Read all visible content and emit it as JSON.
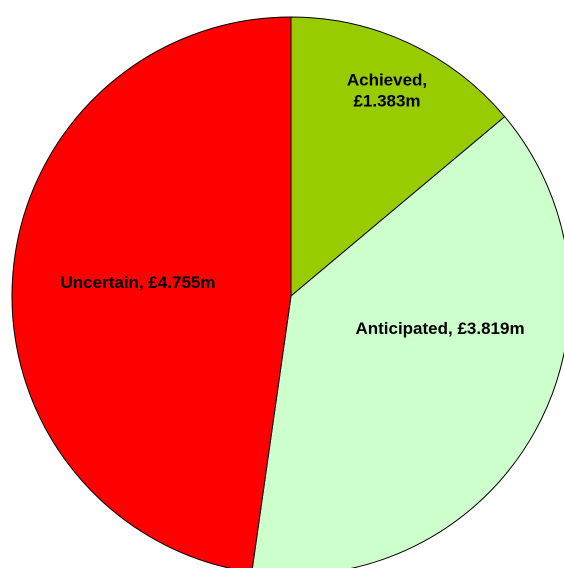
{
  "chart_data": {
    "type": "pie",
    "slices": [
      {
        "label_lines": [
          "Achieved,",
          "£1.383m"
        ],
        "value": 1.383,
        "color": "#99CC00"
      },
      {
        "label_lines": [
          "Anticipated, £3.819m"
        ],
        "value": 3.819,
        "color": "#CCFFCC"
      },
      {
        "label_lines": [
          "Uncertain, £4.755m"
        ],
        "value": 4.755,
        "color": "#FF0000"
      }
    ],
    "start_angle": "12 o'clock",
    "direction": "clockwise"
  }
}
